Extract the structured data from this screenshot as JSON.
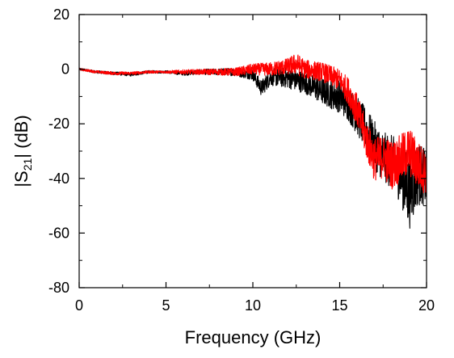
{
  "chart_data": {
    "type": "line",
    "title": "",
    "xlabel": "Frequency (GHz)",
    "ylabel_parts": {
      "pre": "|S",
      "sub": "21",
      "post": "| (dB)"
    },
    "xlim": [
      0,
      20
    ],
    "ylim": [
      -80,
      20
    ],
    "x_ticks": [
      0,
      5,
      10,
      15,
      20
    ],
    "y_ticks": [
      20,
      0,
      -20,
      -40,
      -60,
      -80
    ],
    "x_tick_labels": [
      "0",
      "5",
      "10",
      "15",
      "20"
    ],
    "y_tick_labels": [
      "20",
      "0",
      "-20",
      "-40",
      "-60",
      "-80"
    ],
    "grid": false,
    "legend": "none",
    "series": [
      {
        "color": "#000000",
        "x": [
          0,
          1,
          2,
          3,
          4,
          5,
          6,
          7,
          8,
          9,
          10,
          10.5,
          11,
          12,
          13,
          14,
          15,
          15.5,
          16,
          16.5,
          17,
          17.5,
          18,
          18.5,
          19,
          19.5,
          20
        ],
        "y": [
          0,
          -1,
          -1.5,
          -2,
          -1,
          -1,
          -1.5,
          -1,
          -1,
          -1,
          -2,
          -7,
          -3,
          -3,
          -5,
          -8,
          -10,
          -13,
          -17,
          -22,
          -28,
          -32,
          -34,
          -38,
          -45,
          -38,
          -40
        ],
        "spread": [
          0.4,
          0.5,
          0.6,
          0.6,
          0.5,
          0.5,
          0.8,
          1,
          1.2,
          1.5,
          2,
          3,
          3,
          4,
          4,
          5,
          6,
          6,
          7,
          8,
          9,
          9,
          10,
          11,
          14,
          12,
          10
        ]
      },
      {
        "color": "#ff0000",
        "x": [
          0,
          1,
          2,
          3,
          4,
          5,
          6,
          7,
          8,
          9,
          10,
          11,
          12,
          12.5,
          13,
          14,
          15,
          15.5,
          16,
          16.5,
          17,
          17.5,
          18,
          18.5,
          19,
          19.5,
          20
        ],
        "y": [
          0,
          -1,
          -1.5,
          -1.5,
          -1,
          -1,
          -1,
          -1,
          -1,
          -1,
          0,
          0,
          1,
          2,
          0,
          -1,
          -4,
          -8,
          -15,
          -25,
          -33,
          -32,
          -35,
          -33,
          -30,
          -35,
          -38
        ],
        "spread": [
          0.4,
          0.5,
          0.6,
          0.6,
          0.5,
          0.5,
          0.8,
          1,
          1.2,
          1.5,
          2,
          2.5,
          3,
          4,
          3.5,
          3.5,
          4,
          5,
          6,
          7,
          8,
          8,
          9,
          9,
          9,
          9,
          8
        ]
      }
    ]
  }
}
